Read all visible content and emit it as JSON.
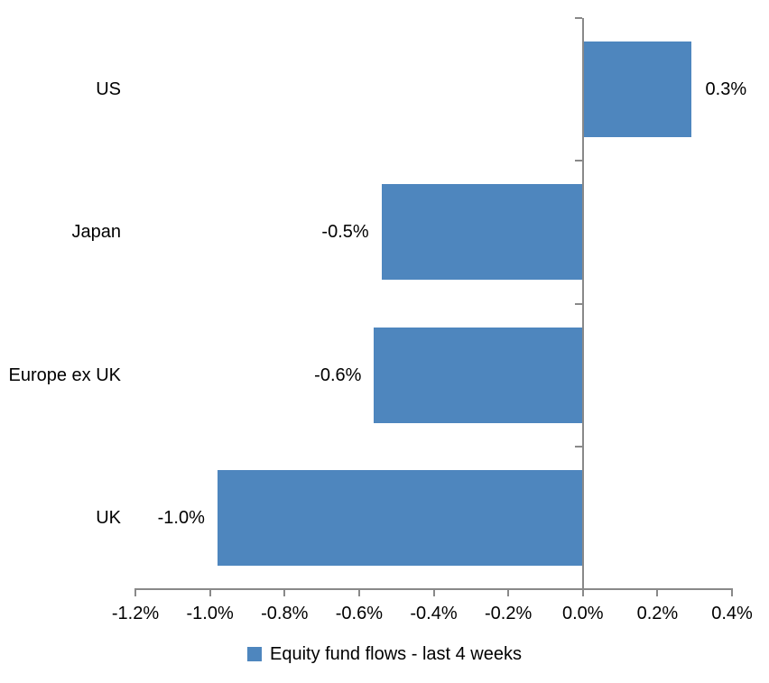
{
  "chart_data": {
    "type": "bar",
    "orientation": "horizontal",
    "title": "",
    "categories": [
      "US",
      "Japan",
      "Europe ex UK",
      "UK"
    ],
    "series": [
      {
        "name": "Equity fund flows - last 4 weeks",
        "values": [
          0.3,
          -0.5,
          -0.6,
          -1.0
        ],
        "plotted_values": [
          0.29,
          -0.54,
          -0.56,
          -0.98
        ],
        "value_labels": [
          "0.3%",
          "-0.5%",
          "-0.6%",
          "-1.0%"
        ],
        "unit": "%"
      }
    ],
    "xlabel": "",
    "ylabel": "",
    "xlim": [
      -1.2,
      0.4
    ],
    "x_ticks": [
      {
        "value": -1.2,
        "label": "-1.2%"
      },
      {
        "value": -1.0,
        "label": "-1.0%"
      },
      {
        "value": -0.8,
        "label": "-0.8%"
      },
      {
        "value": -0.6,
        "label": "-0.6%"
      },
      {
        "value": -0.4,
        "label": "-0.4%"
      },
      {
        "value": -0.2,
        "label": "-0.2%"
      },
      {
        "value": 0.0,
        "label": "0.0%"
      },
      {
        "value": 0.2,
        "label": "0.2%"
      },
      {
        "value": 0.4,
        "label": "0.4%"
      }
    ],
    "grid": false,
    "legend": {
      "position": "bottom",
      "label": "Equity fund flows - last 4 weeks"
    },
    "colors": {
      "bar": "#4e86be",
      "axis": "#898989",
      "text": "#000000",
      "background": "#ffffff"
    }
  }
}
